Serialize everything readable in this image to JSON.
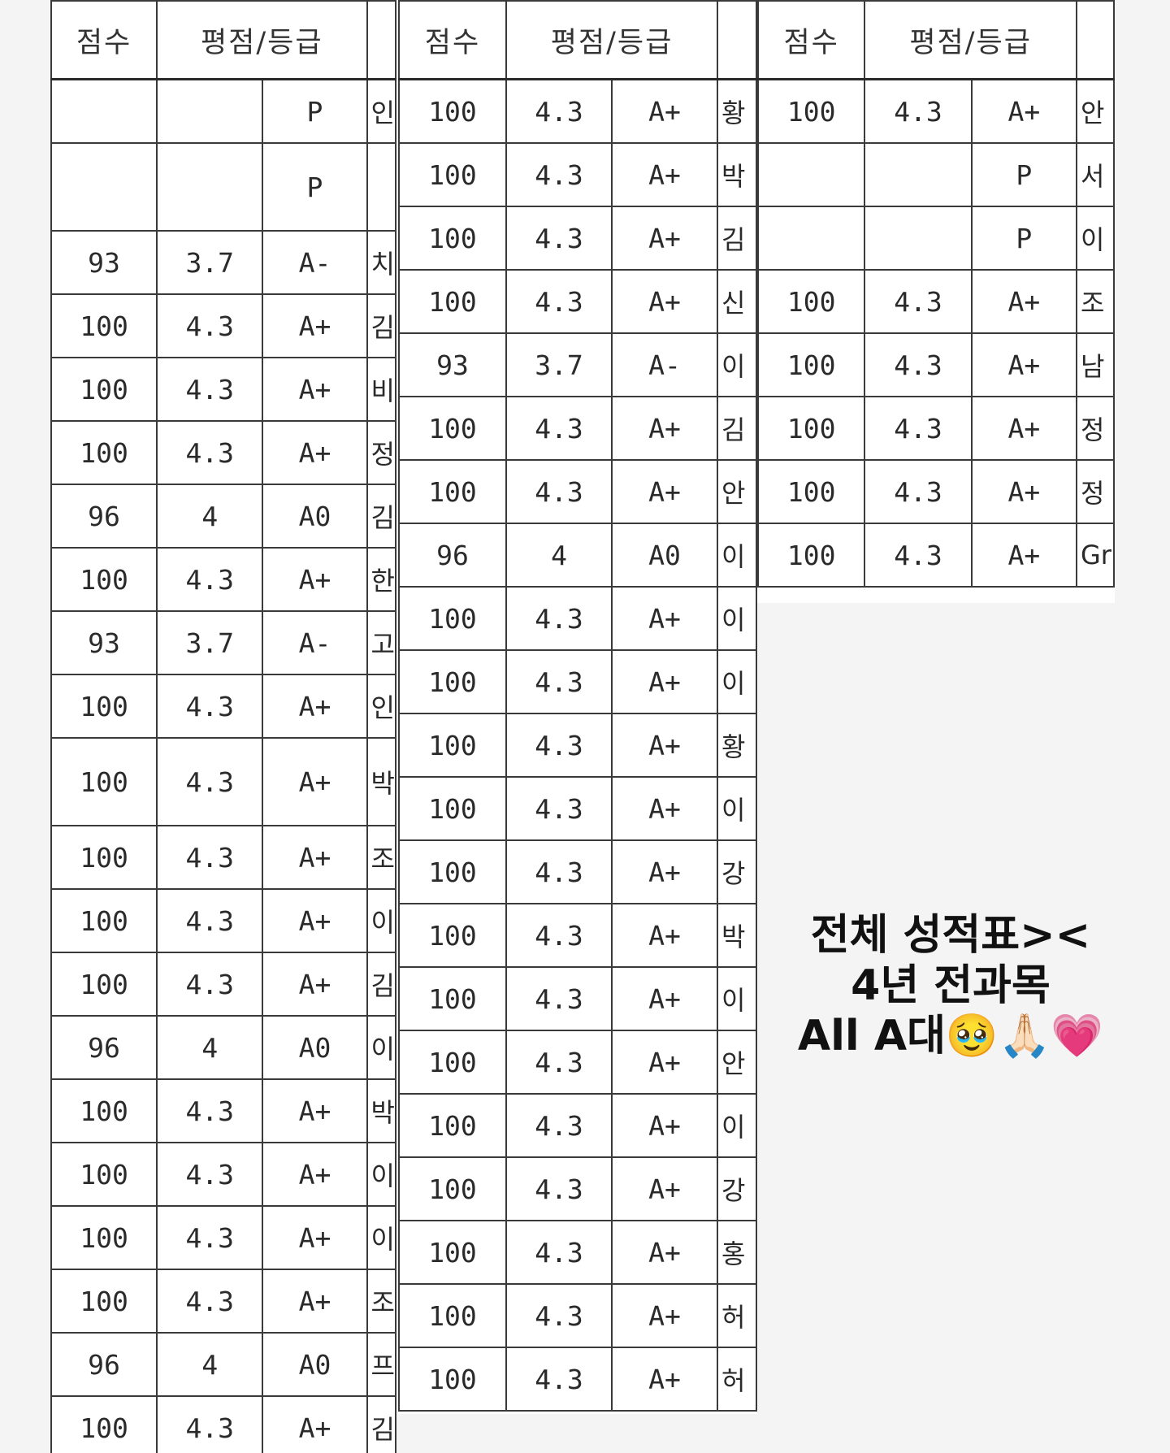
{
  "headers": {
    "score": "점수",
    "grade": "평점/등급"
  },
  "panel1": {
    "rows": [
      {
        "score": "",
        "gpa": "",
        "letter": "P",
        "name": "인",
        "tall": false
      },
      {
        "score": "",
        "gpa": "",
        "letter": "P",
        "name": "",
        "tall": true
      },
      {
        "score": "93",
        "gpa": "3.7",
        "letter": "A-",
        "name": "치",
        "tall": false
      },
      {
        "score": "100",
        "gpa": "4.3",
        "letter": "A+",
        "name": "김",
        "tall": false
      },
      {
        "score": "100",
        "gpa": "4.3",
        "letter": "A+",
        "name": "비",
        "tall": false
      },
      {
        "score": "100",
        "gpa": "4.3",
        "letter": "A+",
        "name": "정",
        "tall": false
      },
      {
        "score": "96",
        "gpa": "4",
        "letter": "A0",
        "name": "김",
        "tall": false
      },
      {
        "score": "100",
        "gpa": "4.3",
        "letter": "A+",
        "name": "한",
        "tall": false
      },
      {
        "score": "93",
        "gpa": "3.7",
        "letter": "A-",
        "name": "고",
        "tall": false
      },
      {
        "score": "100",
        "gpa": "4.3",
        "letter": "A+",
        "name": "인",
        "tall": false
      },
      {
        "score": "100",
        "gpa": "4.3",
        "letter": "A+",
        "name": "박",
        "tall": true
      },
      {
        "score": "100",
        "gpa": "4.3",
        "letter": "A+",
        "name": "조",
        "tall": false
      },
      {
        "score": "100",
        "gpa": "4.3",
        "letter": "A+",
        "name": "이",
        "tall": false
      },
      {
        "score": "100",
        "gpa": "4.3",
        "letter": "A+",
        "name": "김",
        "tall": false
      },
      {
        "score": "96",
        "gpa": "4",
        "letter": "A0",
        "name": "이",
        "tall": false
      },
      {
        "score": "100",
        "gpa": "4.3",
        "letter": "A+",
        "name": "박",
        "tall": false
      },
      {
        "score": "100",
        "gpa": "4.3",
        "letter": "A+",
        "name": "이",
        "tall": false
      },
      {
        "score": "100",
        "gpa": "4.3",
        "letter": "A+",
        "name": "이",
        "tall": false
      },
      {
        "score": "100",
        "gpa": "4.3",
        "letter": "A+",
        "name": "조",
        "tall": false
      },
      {
        "score": "96",
        "gpa": "4",
        "letter": "A0",
        "name": "프",
        "tall": false
      },
      {
        "score": "100",
        "gpa": "4.3",
        "letter": "A+",
        "name": "김",
        "tall": false
      }
    ]
  },
  "panel2": {
    "rows": [
      {
        "score": "100",
        "gpa": "4.3",
        "letter": "A+",
        "name": "황"
      },
      {
        "score": "100",
        "gpa": "4.3",
        "letter": "A+",
        "name": "박"
      },
      {
        "score": "100",
        "gpa": "4.3",
        "letter": "A+",
        "name": "김"
      },
      {
        "score": "100",
        "gpa": "4.3",
        "letter": "A+",
        "name": "신"
      },
      {
        "score": "93",
        "gpa": "3.7",
        "letter": "A-",
        "name": "이"
      },
      {
        "score": "100",
        "gpa": "4.3",
        "letter": "A+",
        "name": "김"
      },
      {
        "score": "100",
        "gpa": "4.3",
        "letter": "A+",
        "name": "안"
      },
      {
        "score": "96",
        "gpa": "4",
        "letter": "A0",
        "name": "이"
      },
      {
        "score": "100",
        "gpa": "4.3",
        "letter": "A+",
        "name": "이"
      },
      {
        "score": "100",
        "gpa": "4.3",
        "letter": "A+",
        "name": "이"
      },
      {
        "score": "100",
        "gpa": "4.3",
        "letter": "A+",
        "name": "황"
      },
      {
        "score": "100",
        "gpa": "4.3",
        "letter": "A+",
        "name": "이"
      },
      {
        "score": "100",
        "gpa": "4.3",
        "letter": "A+",
        "name": "강"
      },
      {
        "score": "100",
        "gpa": "4.3",
        "letter": "A+",
        "name": "박"
      },
      {
        "score": "100",
        "gpa": "4.3",
        "letter": "A+",
        "name": "이"
      },
      {
        "score": "100",
        "gpa": "4.3",
        "letter": "A+",
        "name": "안"
      },
      {
        "score": "100",
        "gpa": "4.3",
        "letter": "A+",
        "name": "이"
      },
      {
        "score": "100",
        "gpa": "4.3",
        "letter": "A+",
        "name": "강"
      },
      {
        "score": "100",
        "gpa": "4.3",
        "letter": "A+",
        "name": "홍"
      },
      {
        "score": "100",
        "gpa": "4.3",
        "letter": "A+",
        "name": "허"
      },
      {
        "score": "100",
        "gpa": "4.3",
        "letter": "A+",
        "name": "허"
      }
    ]
  },
  "panel3": {
    "rows": [
      {
        "score": "100",
        "gpa": "4.3",
        "letter": "A+",
        "name": "안"
      },
      {
        "score": "",
        "gpa": "",
        "letter": "P",
        "name": "서"
      },
      {
        "score": "",
        "gpa": "",
        "letter": "P",
        "name": "이"
      },
      {
        "score": "100",
        "gpa": "4.3",
        "letter": "A+",
        "name": "조"
      },
      {
        "score": "100",
        "gpa": "4.3",
        "letter": "A+",
        "name": "남"
      },
      {
        "score": "100",
        "gpa": "4.3",
        "letter": "A+",
        "name": "정"
      },
      {
        "score": "100",
        "gpa": "4.3",
        "letter": "A+",
        "name": "정"
      },
      {
        "score": "100",
        "gpa": "4.3",
        "letter": "A+",
        "name": "Gr"
      }
    ]
  },
  "caption": {
    "line1": "전체 성적표><",
    "line2": "4년 전과목",
    "line3_text": "All A대",
    "line3_emoji": "🥹🙏🏻💗"
  }
}
